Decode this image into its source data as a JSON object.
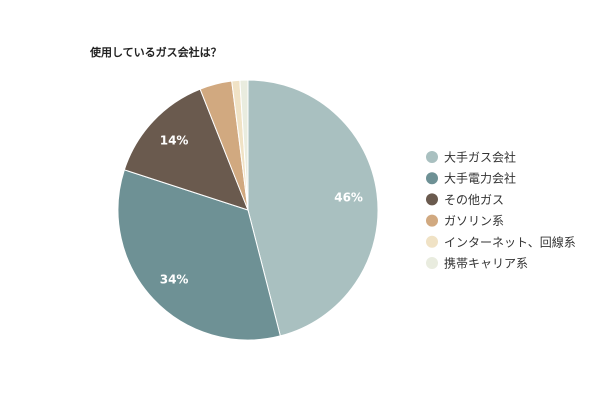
{
  "chart_data": {
    "type": "pie",
    "title": "使用しているガス会社は？",
    "legend_position": "right",
    "slices": [
      {
        "label": "大手ガス会社",
        "value": 46,
        "data_label": "46%",
        "color": "#a9c0c0"
      },
      {
        "label": "大手電力会社",
        "value": 34,
        "data_label": "34%",
        "color": "#6e9195"
      },
      {
        "label": "その他ガス",
        "value": 14,
        "data_label": "14%",
        "color": "#6a5a4e"
      },
      {
        "label": "ガソリン系",
        "value": 4,
        "data_label": "",
        "color": "#d1a980"
      },
      {
        "label": "インターネット、回線系",
        "value": 1,
        "data_label": "",
        "color": "#f0e2c5"
      },
      {
        "label": "携帯キャリア系",
        "value": 1,
        "data_label": "",
        "color": "#e9ecdf"
      }
    ]
  }
}
